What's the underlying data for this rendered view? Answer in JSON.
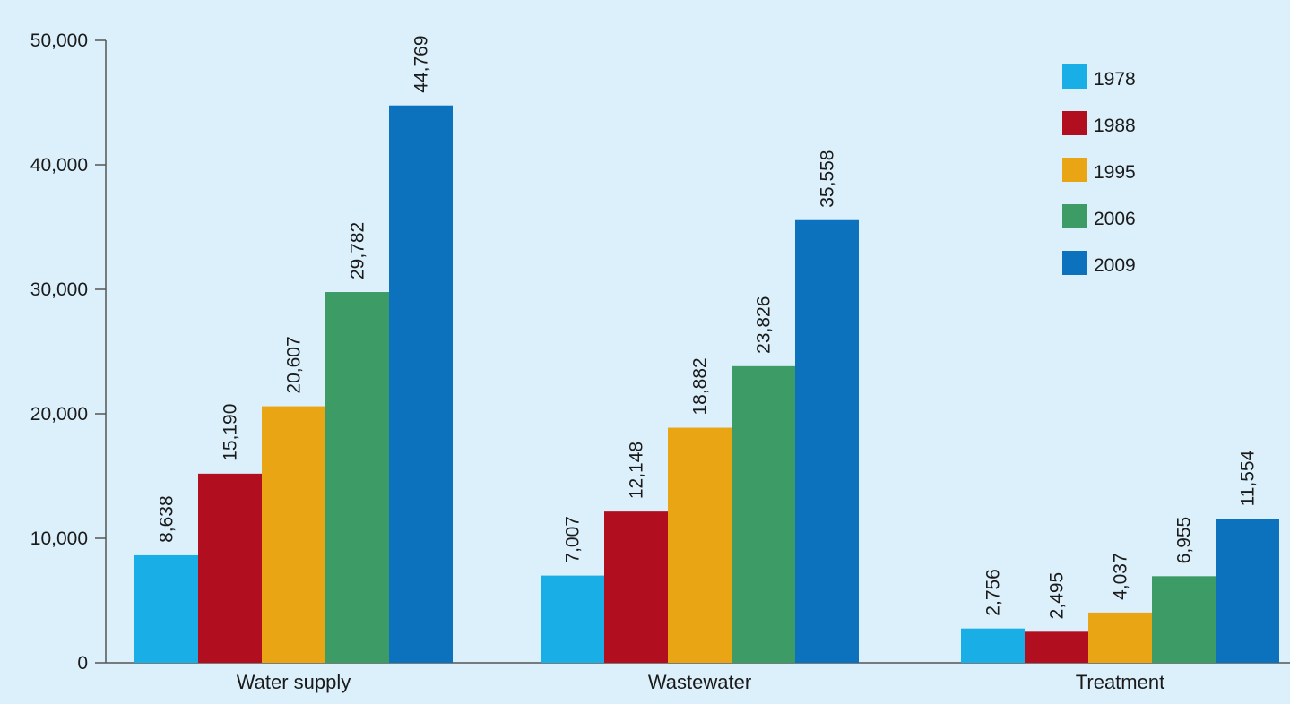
{
  "chart_data": {
    "type": "bar",
    "categories": [
      "Water supply",
      "Wastewater",
      "Treatment"
    ],
    "series": [
      {
        "name": "1978",
        "color": "#1aaee6",
        "values": [
          8638,
          7007,
          2756
        ]
      },
      {
        "name": "1988",
        "color": "#b10f1f",
        "values": [
          15190,
          12148,
          2495
        ]
      },
      {
        "name": "1995",
        "color": "#e9a514",
        "values": [
          20607,
          18882,
          4037
        ]
      },
      {
        "name": "2006",
        "color": "#3d9c66",
        "values": [
          29782,
          23826,
          6955
        ]
      },
      {
        "name": "2009",
        "color": "#0c72bd",
        "values": [
          44769,
          35558,
          11554
        ]
      }
    ],
    "data_labels": [
      [
        "8,638",
        "7,007",
        "2,756"
      ],
      [
        "15,190",
        "12,148",
        "2,495"
      ],
      [
        "20,607",
        "18,882",
        "4,037"
      ],
      [
        "29,782",
        "23,826",
        "6,955"
      ],
      [
        "44,769",
        "35,558",
        "11,554"
      ]
    ],
    "yticks": [
      0,
      10000,
      20000,
      30000,
      40000,
      50000
    ],
    "ytick_labels": [
      "0",
      "10,000",
      "20,000",
      "30,000",
      "40,000",
      "50,000"
    ],
    "ylim": [
      0,
      50000
    ],
    "title": "",
    "xlabel": "",
    "ylabel": "",
    "grid": false,
    "legend_position": "top-right"
  }
}
